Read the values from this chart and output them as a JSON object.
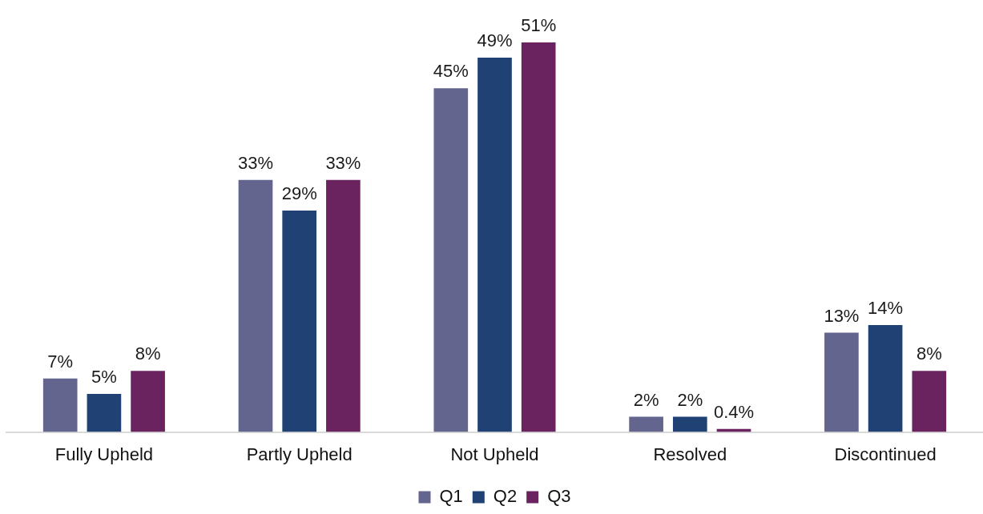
{
  "chart_data": {
    "type": "bar",
    "categories": [
      "Fully Upheld",
      "Partly Upheld",
      "Not Upheld",
      "Resolved",
      "Discontinued"
    ],
    "series": [
      {
        "name": "Q1",
        "color": "#63658f",
        "values": [
          7,
          33,
          45,
          2,
          13
        ],
        "value_labels": [
          "7%",
          "33%",
          "45%",
          "2%",
          "13%"
        ]
      },
      {
        "name": "Q2",
        "color": "#1f4173",
        "values": [
          5,
          29,
          49,
          2,
          14
        ],
        "value_labels": [
          "5%",
          "29%",
          "49%",
          "2%",
          "14%"
        ]
      },
      {
        "name": "Q3",
        "color": "#6b2360",
        "values": [
          8,
          33,
          51,
          0.4,
          8
        ],
        "value_labels": [
          "8%",
          "33%",
          "51%",
          "0.4%",
          "8%"
        ]
      }
    ],
    "legend": "bottom",
    "grid": false,
    "tick_labels": "x"
  }
}
